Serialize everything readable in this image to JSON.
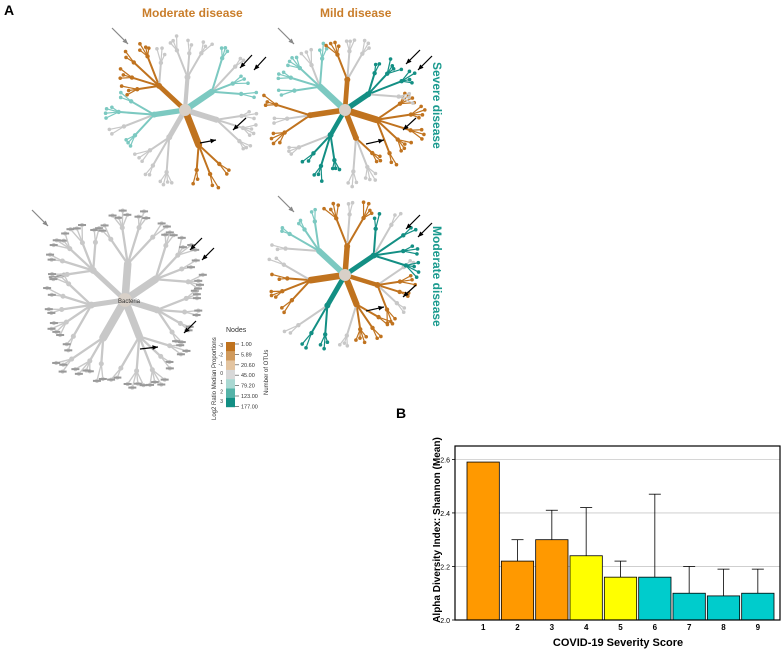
{
  "panels": {
    "a_label": "A",
    "b_label": "B"
  },
  "heat_trees": {
    "col1_title": "Moderate disease",
    "col2_title": "Mild disease",
    "row1_title": "Severe disease",
    "row2_title": "Moderate disease",
    "center_label": "Bacteria",
    "colors": {
      "brown": "#c0731f",
      "teal": "#138f84",
      "gray": "#c8c8c8",
      "light_teal": "#7cc9c1"
    }
  },
  "legend": {
    "title": "Nodes",
    "left_axis_label": "Log2 Ratio Median Proportions",
    "right_axis_label": "Number of OTUs",
    "color_ticks": [
      "-3",
      "-2",
      "-1",
      "0",
      "1",
      "2",
      "3"
    ],
    "otu_ticks": [
      "1.00",
      "5.89",
      "20.60",
      "45.00",
      "79.20",
      "123.00",
      "177.00"
    ]
  },
  "chart_data": {
    "type": "bar",
    "xlabel": "COVID-19 Severity Score",
    "ylabel": "Alpha Diversity Index: Shannon (Mean)",
    "categories": [
      "1",
      "2",
      "3",
      "4",
      "5",
      "6",
      "7",
      "8",
      "9"
    ],
    "values": [
      2.59,
      2.22,
      2.3,
      2.24,
      2.16,
      2.16,
      2.1,
      2.09,
      2.1
    ],
    "error_upper": [
      2.59,
      2.3,
      2.41,
      2.42,
      2.22,
      2.47,
      2.2,
      2.19,
      2.19
    ],
    "colors": [
      "#ff9900",
      "#ff9900",
      "#ff9900",
      "#ffff00",
      "#ffff00",
      "#00cccc",
      "#00cccc",
      "#00cccc",
      "#00cccc"
    ],
    "ylim": [
      2.0,
      2.65
    ],
    "yticks": [
      "2.0",
      "2.2",
      "2.4",
      "2.6"
    ],
    "grid": true
  }
}
